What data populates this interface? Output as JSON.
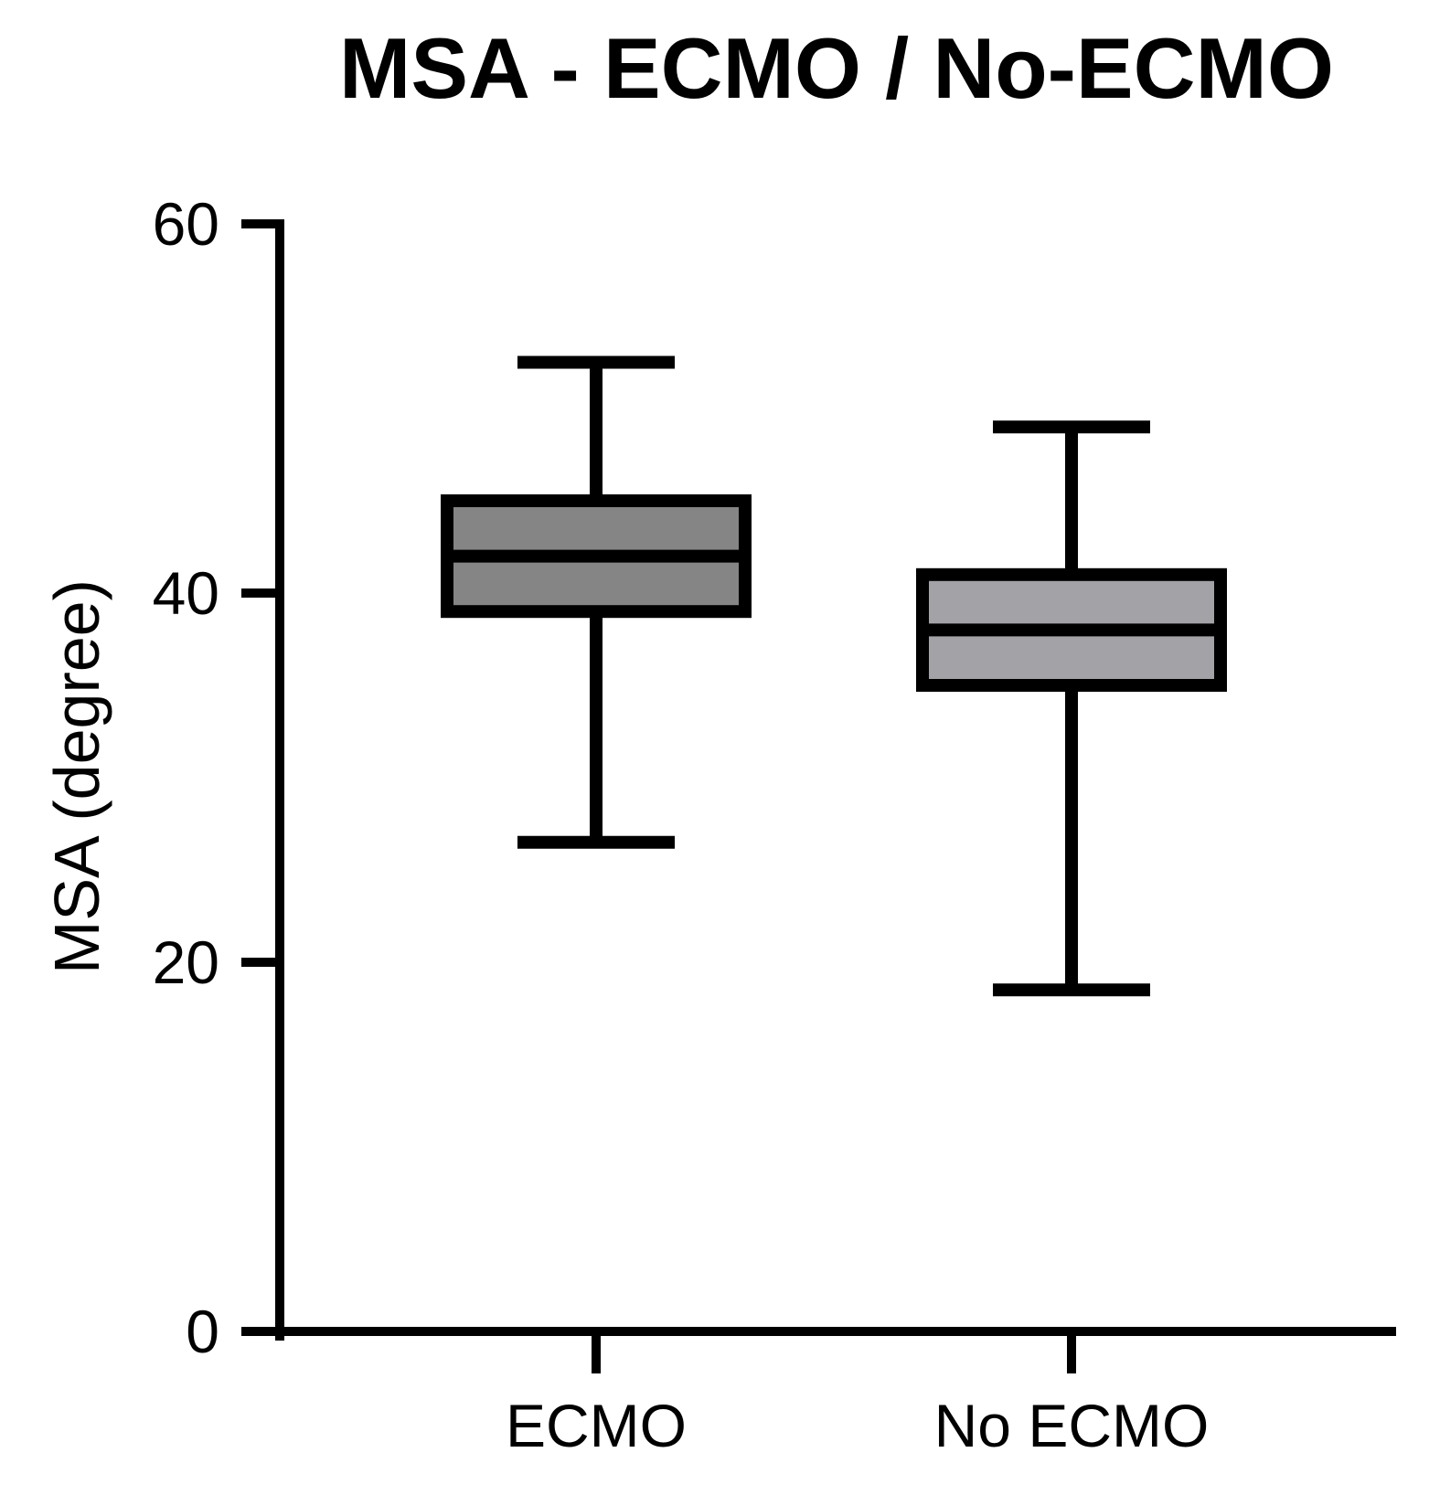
{
  "chart_data": {
    "type": "box",
    "title": "MSA - ECMO / No-ECMO",
    "xlabel": "",
    "ylabel": "MSA (degree)",
    "ylim": [
      0,
      60
    ],
    "yticks": [
      0,
      20,
      40,
      60
    ],
    "categories": [
      "ECMO",
      "No ECMO"
    ],
    "grid": false,
    "legend": "none",
    "series": [
      {
        "category": "ECMO",
        "min": 26.5,
        "q1": 39.0,
        "median": 42.0,
        "q3": 45.0,
        "max": 52.5,
        "color": "#858585"
      },
      {
        "category": "No ECMO",
        "min": 18.5,
        "q1": 35.0,
        "median": 38.0,
        "q3": 41.0,
        "max": 49.0,
        "color": "#a3a2a7"
      }
    ]
  }
}
